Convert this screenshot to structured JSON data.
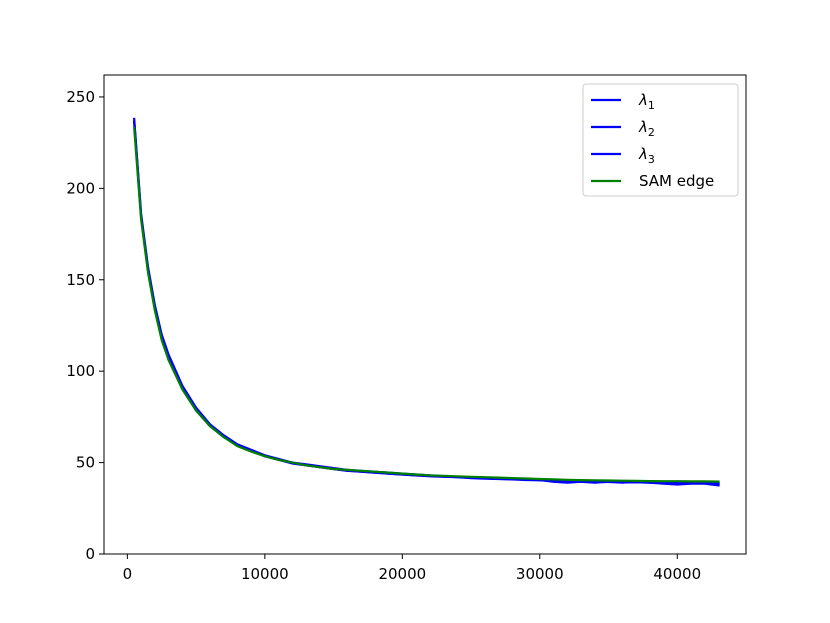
{
  "chart_data": {
    "type": "line",
    "title": "",
    "xlabel": "",
    "ylabel": "",
    "xlim": [
      -1700,
      45000
    ],
    "ylim": [
      0,
      262
    ],
    "x_ticks": [
      0,
      10000,
      20000,
      30000,
      40000
    ],
    "y_ticks": [
      0,
      50,
      100,
      150,
      200,
      250
    ],
    "x_tick_labels": [
      "0",
      "10000",
      "20000",
      "30000",
      "40000"
    ],
    "y_tick_labels": [
      "0",
      "50",
      "100",
      "150",
      "200",
      "250"
    ],
    "grid": false,
    "legend_position": "top-right",
    "legend": [
      "λ1",
      "λ2",
      "λ3",
      "SAM edge"
    ],
    "x": [
      500,
      1000,
      1500,
      2000,
      2500,
      3000,
      4000,
      5000,
      6000,
      7000,
      8000,
      9000,
      10000,
      11000,
      12000,
      13000,
      14000,
      15000,
      16000,
      17000,
      18000,
      19000,
      20000,
      21000,
      22000,
      23000,
      24000,
      25000,
      26000,
      27000,
      28000,
      29000,
      30000,
      31000,
      32000,
      33000,
      34000,
      35000,
      36000,
      37000,
      38000,
      39000,
      40000,
      41000,
      42000,
      43000
    ],
    "series": [
      {
        "name": "λ1",
        "color": "#0000ff",
        "values": [
          238,
          186,
          157,
          136,
          120,
          109,
          92,
          80,
          71,
          65,
          60,
          57,
          54,
          52,
          50,
          49,
          48,
          47,
          46,
          45.5,
          45,
          44.5,
          44,
          43.5,
          43,
          42.5,
          42.2,
          42,
          41.5,
          41.2,
          41,
          40.8,
          40.5,
          39.5,
          39,
          39.5,
          39,
          39.5,
          39,
          39.5,
          39,
          38.5,
          38,
          38.5,
          38.5,
          37.5
        ]
      },
      {
        "name": "λ2",
        "color": "#0000ff",
        "values": [
          237,
          185,
          156,
          135,
          119,
          108,
          91,
          79,
          70,
          64.5,
          59.5,
          56.5,
          53.5,
          51.5,
          49.5,
          48.5,
          47.5,
          46.5,
          45.5,
          45,
          44.5,
          44,
          43.5,
          43,
          42.5,
          42.2,
          42,
          41.5,
          41.2,
          41,
          40.8,
          40.5,
          40.3,
          40,
          39.8,
          39.6,
          39.5,
          39.4,
          39.3,
          39.2,
          39,
          39,
          38.8,
          39,
          38.8,
          38.5
        ]
      },
      {
        "name": "λ3",
        "color": "#0000ff",
        "values": [
          236,
          184,
          155,
          134,
          118,
          107,
          90.5,
          78.5,
          70,
          64,
          59.5,
          56.5,
          53.5,
          51.5,
          50,
          48.5,
          47.5,
          46.5,
          45.5,
          45,
          44.5,
          44,
          43.5,
          43,
          42.7,
          42.4,
          42,
          41.7,
          41.4,
          41.1,
          40.9,
          40.7,
          40.5,
          40.2,
          40,
          39.8,
          39.6,
          39.5,
          39.3,
          39.2,
          39.1,
          39,
          39,
          39,
          38.9,
          38.8
        ]
      },
      {
        "name": "SAM edge",
        "color": "#008000",
        "values": [
          233,
          183,
          154,
          133,
          117,
          106,
          90,
          78.5,
          70,
          64,
          59,
          56,
          53.5,
          51.5,
          50,
          48.5,
          47.5,
          46.5,
          46,
          45.5,
          45,
          44.5,
          44,
          43.5,
          43,
          42.8,
          42.5,
          42.2,
          42,
          41.8,
          41.5,
          41.3,
          41,
          40.8,
          40.6,
          40.4,
          40.3,
          40.2,
          40.1,
          40,
          39.9,
          39.8,
          39.8,
          39.7,
          39.7,
          39.6
        ]
      }
    ]
  }
}
